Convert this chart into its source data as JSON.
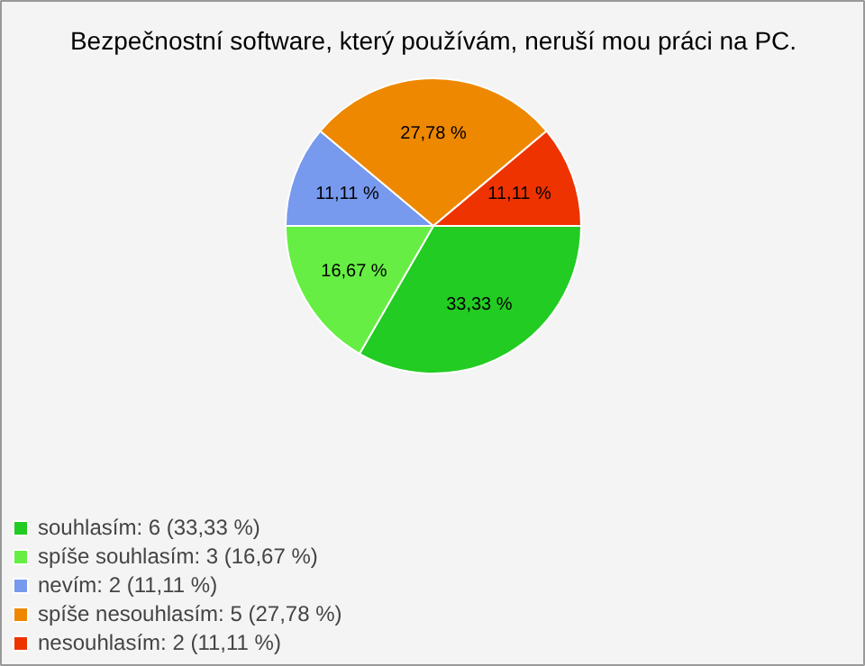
{
  "chart_data": {
    "type": "pie",
    "title": "Bezpečnostní software, který používám, neruší mou práci na PC.",
    "categories": [
      "souhlasím: 6 (33,33 %)",
      "spíše souhlasím: 3 (16,67 %)",
      "nevím: 2 (11,11 %)",
      "spíše nesouhlasím: 5 (27,78 %)",
      "nesouhlasím: 2 (11,11 %)"
    ],
    "values": [
      33.33,
      16.67,
      11.11,
      27.78,
      11.11
    ],
    "value_labels": [
      "33,33 %",
      "16,67 %",
      "11,11 %",
      "27,78 %",
      "11,11 %"
    ],
    "colors": [
      "#22cc22",
      "#66ee44",
      "#7799ee",
      "#ee8800",
      "#ee3300"
    ],
    "legend": "bottom left"
  }
}
